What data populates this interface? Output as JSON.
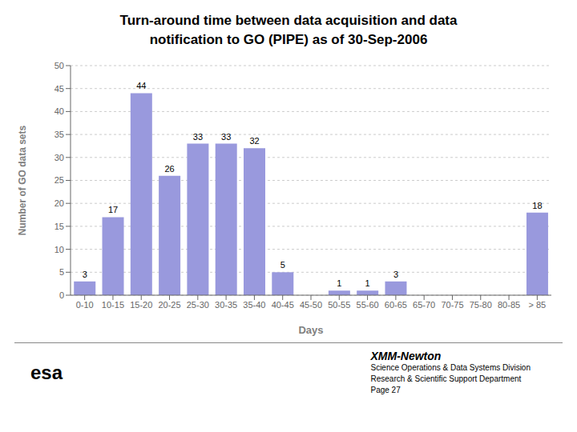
{
  "chart_data": {
    "type": "bar",
    "title": "Turn-around time between data acquisition and data\nnotification to GO (PIPE) as of 30-Sep-2006",
    "categories": [
      "0-10",
      "10-15",
      "15-20",
      "20-25",
      "25-30",
      "30-35",
      "35-40",
      "40-45",
      "45-50",
      "50-55",
      "55-60",
      "60-65",
      "65-70",
      "70-75",
      "75-80",
      "80-85",
      "> 85"
    ],
    "values": [
      3,
      17,
      44,
      26,
      33,
      33,
      32,
      5,
      0,
      1,
      1,
      3,
      0,
      0,
      0,
      0,
      18
    ],
    "color": "#9999dd",
    "xlabel": "Days",
    "ylabel": "Number of GO data sets",
    "ylim": [
      0,
      50
    ],
    "yticks": [
      0,
      5,
      10,
      15,
      20,
      25,
      30,
      35,
      40,
      45,
      50
    ],
    "grid": true,
    "data_labels": true,
    "annotations": [
      "esa",
      "XMM-Newton",
      "Science Operations & Data Systems Division",
      "Research & Scientific Support Department",
      "Page 27"
    ]
  }
}
